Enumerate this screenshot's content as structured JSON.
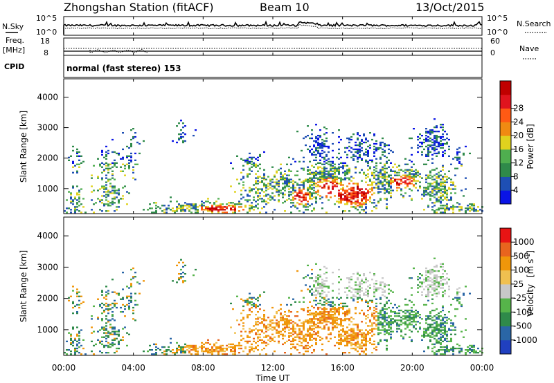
{
  "header": {
    "station": "Zhongshan Station (fitACF)",
    "beam": "Beam 10",
    "date": "13/Oct/2015"
  },
  "sky_panel": {
    "left_label": "N.Sky",
    "left_tick_top": "10^5",
    "left_tick_bottom": "10^0",
    "right_label": "N.Search",
    "right_tick_top": "10^5",
    "right_tick_bottom": "10^0"
  },
  "freq_panel": {
    "left_label_1": "Freq.",
    "left_label_2": "[MHz]",
    "left_tick_top": "18",
    "left_tick_bottom": "8",
    "right_label": "Nave",
    "right_tick_top": "60",
    "right_tick_bottom": "0"
  },
  "cpid": {
    "label": "CPID",
    "text": "normal (fast stereo) 153"
  },
  "x_axis": {
    "label": "Time UT",
    "ticks": [
      "00:00",
      "04:00",
      "08:00",
      "12:00",
      "16:00",
      "20:00",
      "00:00"
    ]
  },
  "chart_data": [
    {
      "type": "heatmap",
      "name": "power",
      "ylabel": "Slant Range [km]",
      "y_ticks": [
        "1000",
        "2000",
        "3000",
        "4000"
      ],
      "ylim": [
        180,
        4600
      ],
      "colorbar_label": "Power [dB]",
      "colorbar_ticks": [
        "4",
        "8",
        "12",
        "16",
        "20",
        "24",
        "28"
      ],
      "colorbar_colors": [
        "#0a14e6",
        "#1e4fb4",
        "#2f8a4a",
        "#4fae4f",
        "#e0d21e",
        "#f08a12",
        "#ff5a14",
        "#e0141e",
        "#c00000"
      ]
    },
    {
      "type": "heatmap",
      "name": "velocity",
      "ylabel": "Slant Range [km]",
      "y_ticks": [
        "1000",
        "2000",
        "3000",
        "4000"
      ],
      "ylim": [
        180,
        4600
      ],
      "colorbar_label": "Velocity",
      "colorbar_units": "[m s",
      "colorbar_units_sup": "-1",
      "colorbar_units_end": "]",
      "colorbar_ticks": [
        "1000",
        "500",
        "100",
        "25",
        "-25",
        "-100",
        "-500",
        "-1000"
      ],
      "colorbar_colors": [
        "#2040c0",
        "#2a66a6",
        "#2f8a4a",
        "#56b44a",
        "#c8c8c8",
        "#f0c050",
        "#f0960a",
        "#e8641e",
        "#e81414"
      ]
    }
  ]
}
